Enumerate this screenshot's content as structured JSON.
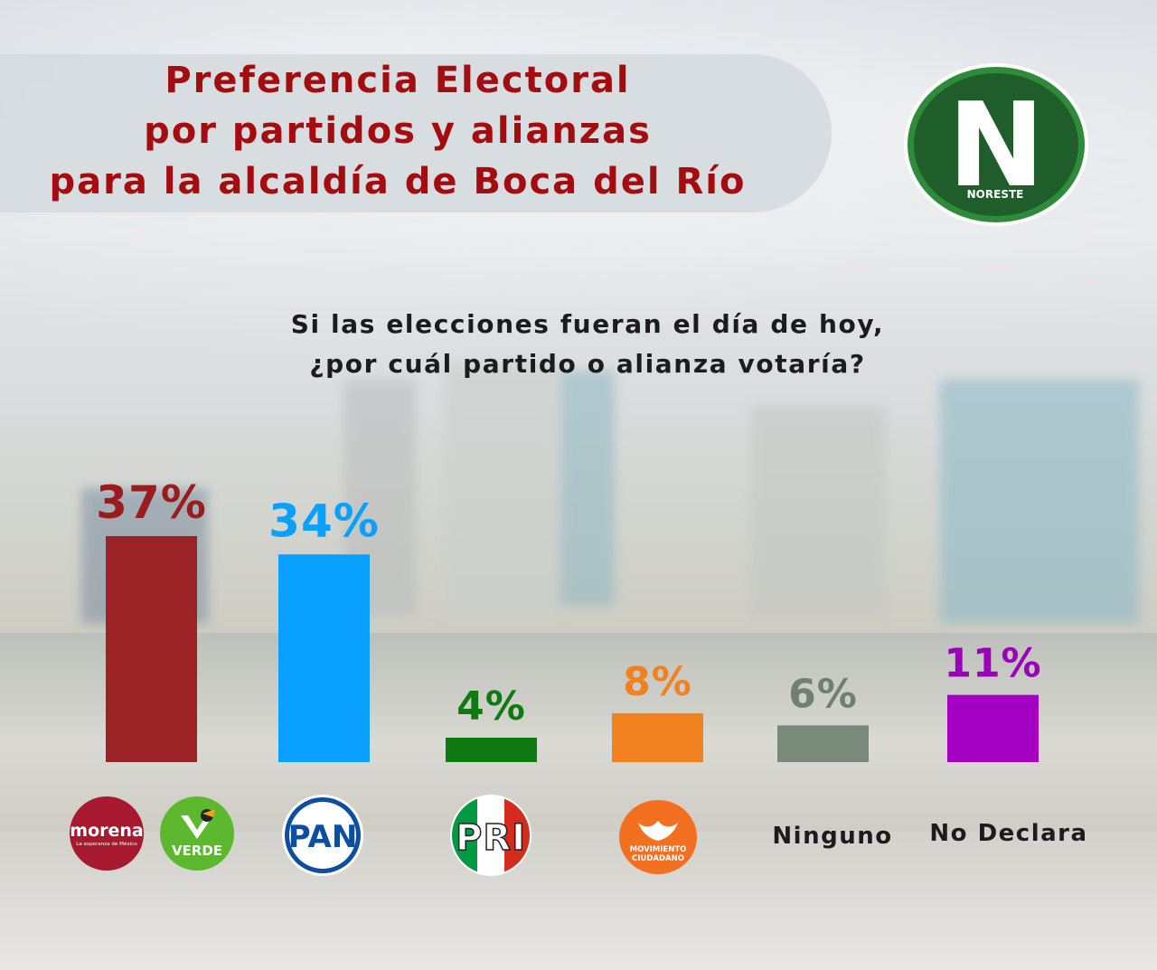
{
  "title": {
    "line1": "Preferencia Electoral",
    "line2": "por partidos y alianzas",
    "line3": "para la alcaldía de Boca del Río"
  },
  "question": {
    "line1": "Si las elecciones fueran el día de hoy,",
    "line2": "¿por cuál partido o alianza votaría?"
  },
  "brand": {
    "letter": "N",
    "name": "NORESTE",
    "color": "#1f5e2a",
    "ring_color": "#2e8b3a"
  },
  "logos": {
    "morena": {
      "name": "morena",
      "tagline": "La esperanza de México",
      "color": "#a6192e"
    },
    "verde": {
      "name": "VERDE",
      "color": "#5cb82e"
    },
    "pan": {
      "name": "PAN",
      "color": "#0d4ea1"
    },
    "pri": {
      "name": "PRI",
      "colors": [
        "#009a44",
        "#ffffff",
        "#d52b1e"
      ]
    },
    "mc": {
      "name1": "MOVIMIENTO",
      "name2": "CIUDADANO",
      "color": "#f37021"
    }
  },
  "chart_data": {
    "type": "bar",
    "categories": [
      "Morena-Verde",
      "PAN",
      "PRI",
      "Movimiento Ciudadano",
      "Ninguno",
      "No Declara"
    ],
    "values": [
      37,
      34,
      4,
      8,
      6,
      11
    ],
    "labels": [
      "37%",
      "34%",
      "4%",
      "8%",
      "6%",
      "11%"
    ],
    "colors": [
      "#9b2225",
      "#0aa0ff",
      "#107a12",
      "#f28220",
      "#7a8a7a",
      "#a300c2"
    ],
    "value_label_colors": [
      "#9b1c1f",
      "#0aa0ff",
      "#107a12",
      "#f28220",
      "#6f7f70",
      "#9a00b8"
    ],
    "text_categories": [
      "Ninguno",
      "No Declara"
    ],
    "unit": "%",
    "grid": false
  }
}
